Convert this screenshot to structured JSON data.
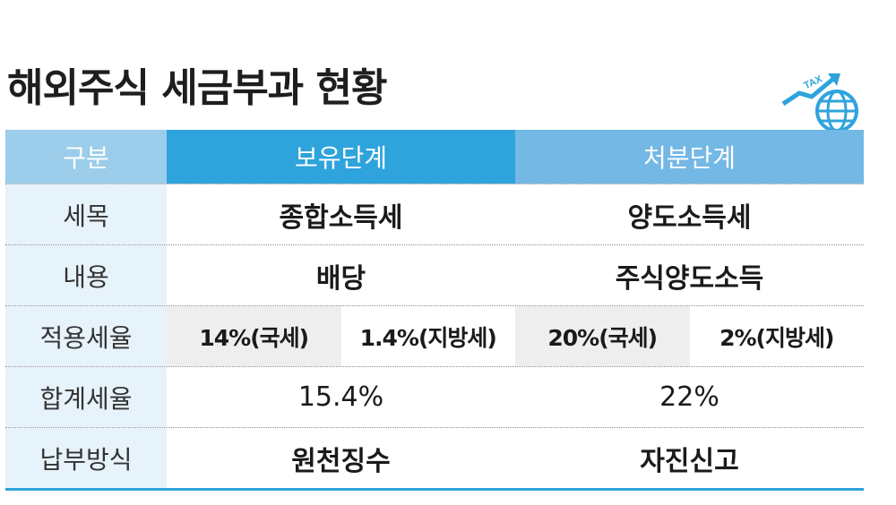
{
  "title": "해외주식 세금부과 현황",
  "logo": {
    "icon": "tax-globe-icon",
    "text": "TAX",
    "color": "#2fa3dc"
  },
  "colors": {
    "accent": "#2fa3dc",
    "header_label": "#9ccdea",
    "header_holding": "#2fa3dc",
    "header_disposal": "#74b8e5",
    "label_bg": "#e7f3fb"
  },
  "table": {
    "headers": [
      "구분",
      "보유단계",
      "처분단계"
    ],
    "rows": [
      {
        "label": "세목",
        "holding": "종합소득세",
        "disposal": "양도소득세"
      },
      {
        "label": "내용",
        "holding": "배당",
        "disposal": "주식양도소득"
      },
      {
        "label": "적용세율",
        "holding": [
          "14%(국세)",
          "1.4%(지방세)"
        ],
        "disposal": [
          "20%(국세)",
          "2%(지방세)"
        ]
      },
      {
        "label": "합계세율",
        "holding": "15.4%",
        "disposal": "22%"
      },
      {
        "label": "납부방식",
        "holding": "원천징수",
        "disposal": "자진신고"
      }
    ]
  }
}
